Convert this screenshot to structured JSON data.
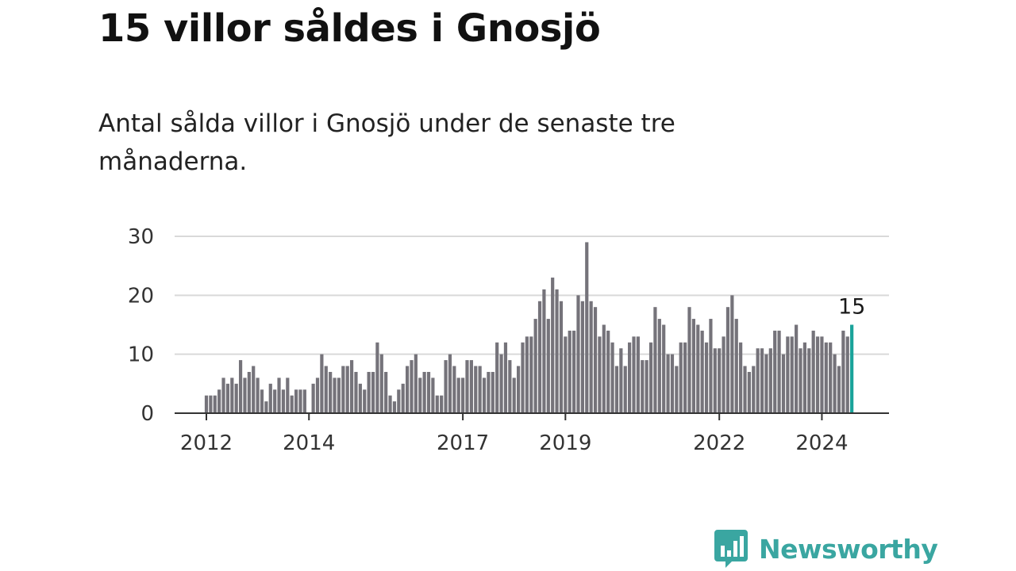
{
  "title": "15 villor såldes i Gnosjö",
  "subtitle": "Antal sålda villor i Gnosjö under de senaste tre månaderna.",
  "brand": {
    "name": "Newsworthy",
    "color": "#3aa6a1"
  },
  "colors": {
    "bar": "#75737a",
    "highlight": "#1aa39a",
    "grid": "#d9d9d9",
    "axis": "#333333"
  },
  "chart_data": {
    "type": "bar",
    "title": "Antal sålda villor i Gnosjö under de senaste tre månaderna.",
    "xlabel": "",
    "ylabel": "",
    "ylim": [
      0,
      30
    ],
    "yticks": [
      0,
      10,
      20,
      30
    ],
    "grid": true,
    "x_tick_labels": [
      "2012",
      "2014",
      "2017",
      "2019",
      "2022",
      "2024"
    ],
    "start": "2012-01",
    "end": "2024-06",
    "frequency": "monthly (rolling three-month total)",
    "highlight_label": "15",
    "values": [
      3,
      3,
      3,
      4,
      6,
      5,
      6,
      5,
      9,
      6,
      7,
      8,
      6,
      4,
      2,
      5,
      4,
      6,
      4,
      6,
      3,
      4,
      4,
      4,
      0,
      5,
      6,
      10,
      8,
      7,
      6,
      6,
      8,
      8,
      9,
      7,
      5,
      4,
      7,
      7,
      12,
      10,
      7,
      3,
      2,
      4,
      5,
      8,
      9,
      10,
      6,
      7,
      7,
      6,
      3,
      3,
      9,
      10,
      8,
      6,
      6,
      9,
      9,
      8,
      8,
      6,
      7,
      7,
      12,
      10,
      12,
      9,
      6,
      8,
      12,
      13,
      13,
      16,
      19,
      21,
      16,
      23,
      21,
      19,
      13,
      14,
      14,
      20,
      19,
      29,
      19,
      18,
      13,
      15,
      14,
      12,
      8,
      11,
      8,
      12,
      13,
      13,
      9,
      9,
      12,
      18,
      16,
      15,
      10,
      10,
      8,
      12,
      12,
      18,
      16,
      15,
      14,
      12,
      16,
      11,
      11,
      13,
      18,
      20,
      16,
      12,
      8,
      7,
      8,
      11,
      11,
      10,
      11,
      14,
      14,
      10,
      13,
      13,
      15,
      11,
      12,
      11,
      14,
      13,
      13,
      12,
      12,
      10,
      8,
      14,
      13,
      15
    ]
  }
}
